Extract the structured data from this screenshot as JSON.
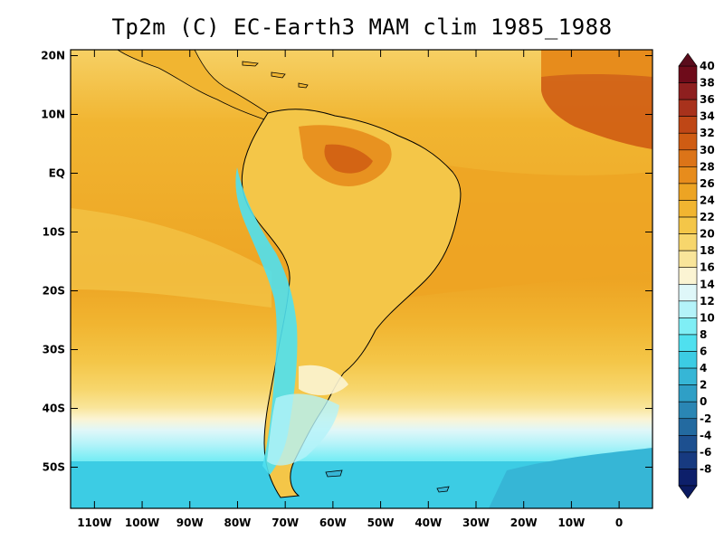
{
  "title": "Tp2m (C) EC-Earth3 MAM clim 1985_1988",
  "map": {
    "lat_labels": [
      "20N",
      "10N",
      "EQ",
      "10S",
      "20S",
      "30S",
      "40S",
      "50S"
    ],
    "lon_labels": [
      "110W",
      "100W",
      "90W",
      "80W",
      "70W",
      "60W",
      "50W",
      "40W",
      "30W",
      "20W",
      "10W",
      "0"
    ],
    "lon_range": [
      -115,
      7
    ],
    "lat_range": [
      -57,
      21
    ]
  },
  "colorbar": {
    "labels": [
      "40",
      "38",
      "36",
      "34",
      "32",
      "30",
      "28",
      "26",
      "24",
      "22",
      "20",
      "18",
      "16",
      "14",
      "12",
      "10",
      "8",
      "6",
      "4",
      "2",
      "0",
      "-2",
      "-4",
      "-6",
      "-8"
    ],
    "colors": [
      "#6e0b1a",
      "#8e1f1f",
      "#a8321c",
      "#bf4716",
      "#cf5c13",
      "#dc7418",
      "#e78c1c",
      "#eda423",
      "#f1b531",
      "#f4c648",
      "#f7d66c",
      "#f9e59a",
      "#fbf4d3",
      "#dff7f9",
      "#b4f3f9",
      "#7feef5",
      "#4fe0ef",
      "#3ccce4",
      "#36b6d6",
      "#2f9fc6",
      "#2a86b4",
      "#236aa0",
      "#1d5090",
      "#173a80",
      "#0d1f6a"
    ],
    "top_arrow_color": "#5a0c1c",
    "bottom_arrow_color": "#0b1a60"
  }
}
